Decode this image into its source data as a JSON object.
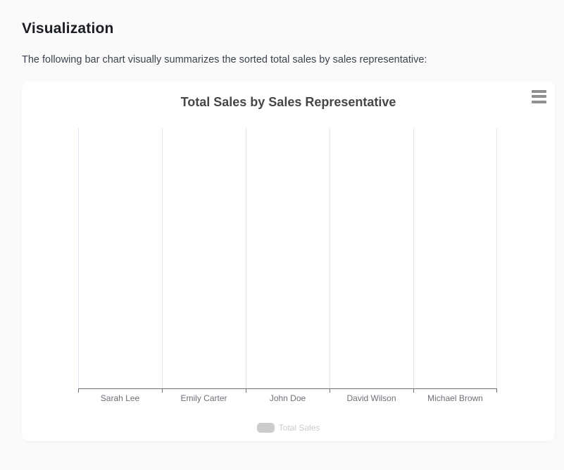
{
  "page": {
    "heading": "Visualization",
    "description": "The following bar chart visually summarizes the sorted total sales by sales representative:"
  },
  "chart_data": {
    "type": "bar",
    "title": "Total Sales by Sales Representative",
    "categories": [
      "Sarah Lee",
      "Emily Carter",
      "John Doe",
      "David Wilson",
      "Michael Brown"
    ],
    "series": [
      {
        "name": "Total Sales",
        "visible": false,
        "values": []
      }
    ],
    "legend": {
      "position": "bottom",
      "items": [
        {
          "label": "Total Sales",
          "enabled": false
        }
      ]
    },
    "xlabel": "",
    "ylabel": "",
    "grid": "vertical-category-splitlines-only",
    "note_visible_state": "Series toggled off: legend grayed out, no bars and no value axis rendered"
  },
  "colors": {
    "page_bg": "#fafafa",
    "card_bg": "#ffffff",
    "chart_title": "#464646",
    "axis_line": "#6E7079",
    "axis_label": "#6E7079",
    "grid_line": "#E0E6F1",
    "legend_disabled": "#cccccc",
    "menu_icon": "#8f8f8f"
  }
}
